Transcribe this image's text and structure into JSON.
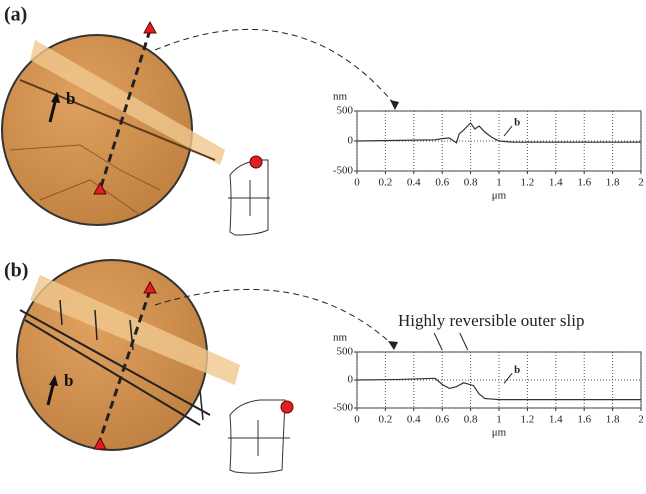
{
  "chart_data": [
    {
      "type": "line",
      "panel_label": "(a)",
      "image_annotation": "b",
      "chart_annotation": "b",
      "y_label": "nm",
      "x_label": "μm",
      "x": [
        0,
        0.3,
        0.55,
        0.6,
        0.65,
        0.7,
        0.72,
        0.75,
        0.8,
        0.83,
        0.86,
        0.9,
        0.95,
        1.0,
        1.1,
        1.2,
        2.0
      ],
      "series": [
        {
          "color": "#333333",
          "values": [
            0,
            10,
            20,
            40,
            50,
            -30,
            120,
            180,
            300,
            200,
            250,
            150,
            60,
            0,
            -20,
            -20,
            -20
          ]
        }
      ],
      "xlim": [
        0,
        2
      ],
      "ylim": [
        -500,
        500
      ],
      "xticks": [
        0,
        0.2,
        0.4,
        0.6,
        0.8,
        1,
        1.2,
        1.4,
        1.6,
        1.8,
        2
      ],
      "yticks": [
        500,
        0,
        -500
      ],
      "grid": true
    },
    {
      "type": "line",
      "panel_label": "(b)",
      "image_annotation": "b",
      "chart_annotation": "b",
      "title": "Highly reversible outer slip",
      "y_label": "nm",
      "x_label": "μm",
      "x": [
        0,
        0.3,
        0.55,
        0.6,
        0.65,
        0.7,
        0.75,
        0.78,
        0.82,
        0.86,
        0.9,
        0.95,
        1.0,
        1.2,
        1.5,
        2.0
      ],
      "series": [
        {
          "color": "#333333",
          "values": [
            0,
            10,
            30,
            -80,
            -150,
            -120,
            -50,
            -70,
            -100,
            -250,
            -330,
            -340,
            -350,
            -350,
            -350,
            -350
          ]
        }
      ],
      "xlim": [
        0,
        2
      ],
      "ylim": [
        -500,
        500
      ],
      "xticks": [
        0,
        0.2,
        0.4,
        0.6,
        0.8,
        1,
        1.2,
        1.4,
        1.6,
        1.8,
        2
      ],
      "yticks": [
        500,
        0,
        -500
      ],
      "grid": true
    }
  ]
}
